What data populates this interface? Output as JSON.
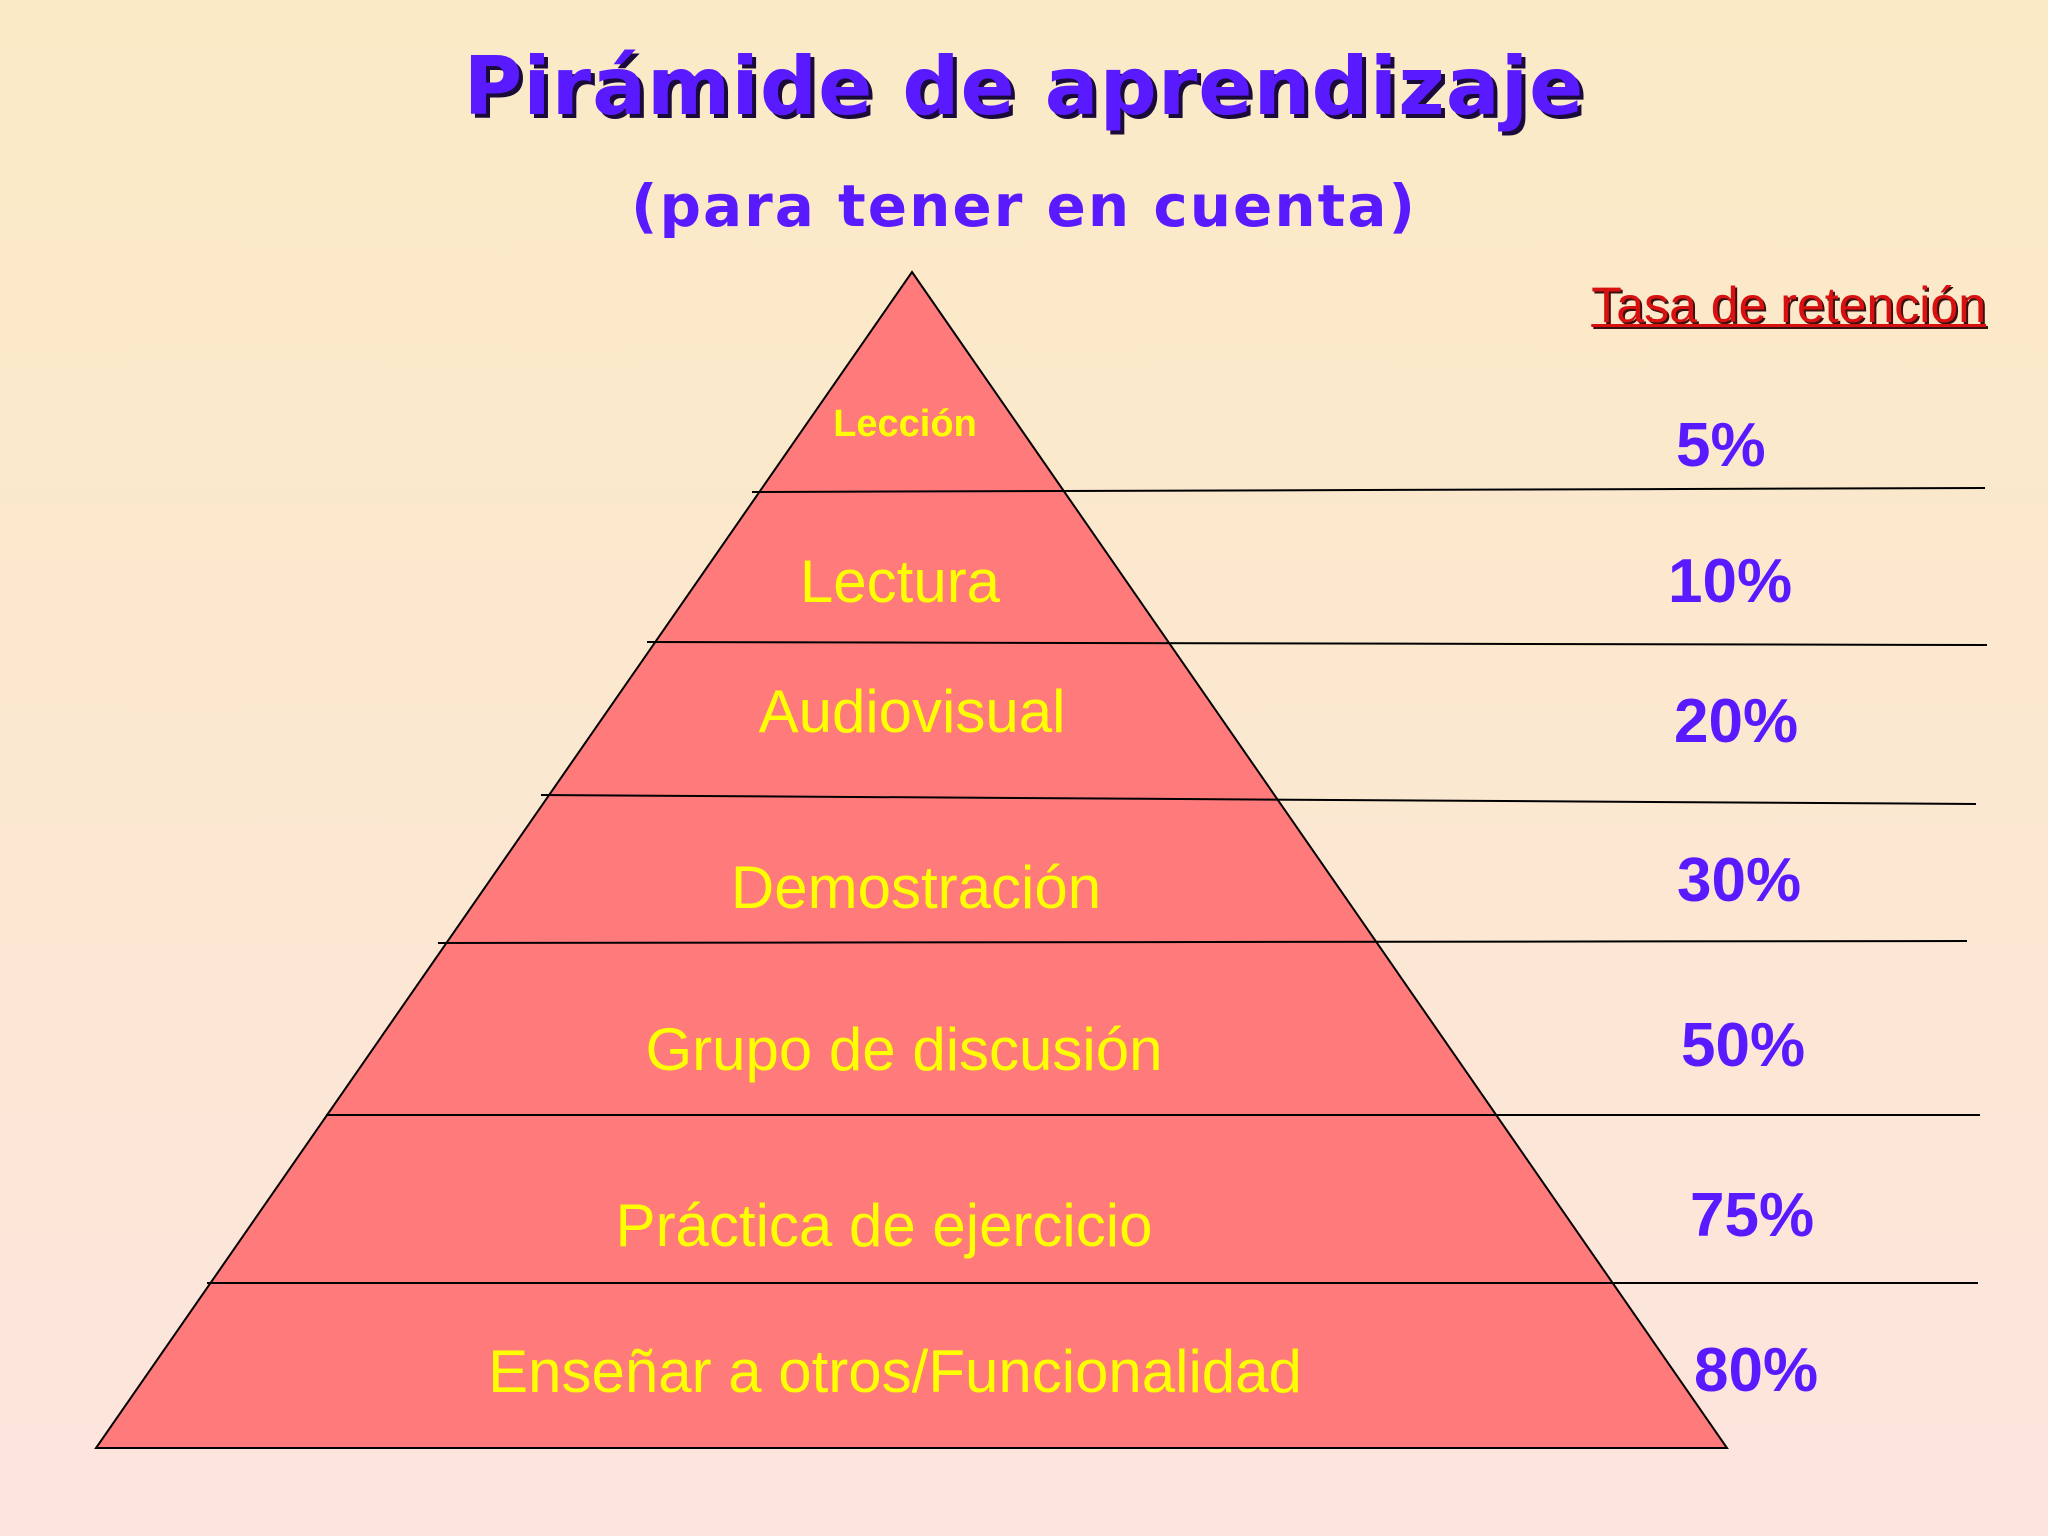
{
  "title": "Pirámide de aprendizaje",
  "subtitle": "(para tener en cuenta)",
  "rate_header": "Tasa de retención",
  "colors": {
    "pyramid_fill": "#ff7a7a",
    "label_text": "#ffff00",
    "rate_text": "#5a1aff",
    "header_text": "#d81010",
    "title_text": "#5a1aff"
  },
  "levels": [
    {
      "label": "Lección",
      "rate": "5%"
    },
    {
      "label": "Lectura",
      "rate": "10%"
    },
    {
      "label": "Audiovisual",
      "rate": "20%"
    },
    {
      "label": "Demostración",
      "rate": "30%"
    },
    {
      "label": "Grupo de discusión",
      "rate": "50%"
    },
    {
      "label": "Práctica de ejercicio",
      "rate": "75%"
    },
    {
      "label": "Enseñar a otros/Funcionalidad",
      "rate": "80%"
    }
  ]
}
